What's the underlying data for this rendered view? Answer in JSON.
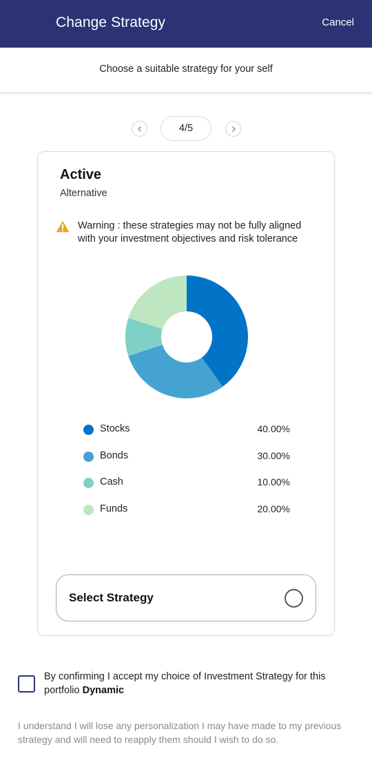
{
  "header": {
    "title": "Change Strategy",
    "cancel_label": "Cancel"
  },
  "subheader": {
    "subtitle": "Choose a suitable strategy for your self"
  },
  "pager": {
    "current_label": "4/5",
    "prev_icon": "chevron-left-icon",
    "next_icon": "chevron-right-icon"
  },
  "strategy": {
    "name": "Active",
    "type": "Alternative",
    "warning": "Warning : these strategies may not be fully aligned with your investment objectives and risk tolerance"
  },
  "chart_data": {
    "type": "pie",
    "donut": true,
    "categories": [
      "Stocks",
      "Bonds",
      "Cash",
      "Funds"
    ],
    "values": [
      40,
      30,
      10,
      20
    ],
    "value_labels": [
      "40.00%",
      "30.00%",
      "10.00%",
      "20.00%"
    ],
    "colors": [
      "#0274c8",
      "#45a3d1",
      "#7fd0c6",
      "#bde6c1"
    ],
    "title": "",
    "legend": "below"
  },
  "select": {
    "label": "Select Strategy"
  },
  "confirm": {
    "text_prefix": "By confirming I accept my choice of Investment Strategy for this portfolio",
    "portfolio_name": "Dynamic"
  },
  "note": "I understand I will lose any personalization I may have made to my previous strategy and will need to reapply them should I wish to do so.",
  "colors": {
    "header_bg": "#2b3374",
    "warning": "#f2a427"
  }
}
